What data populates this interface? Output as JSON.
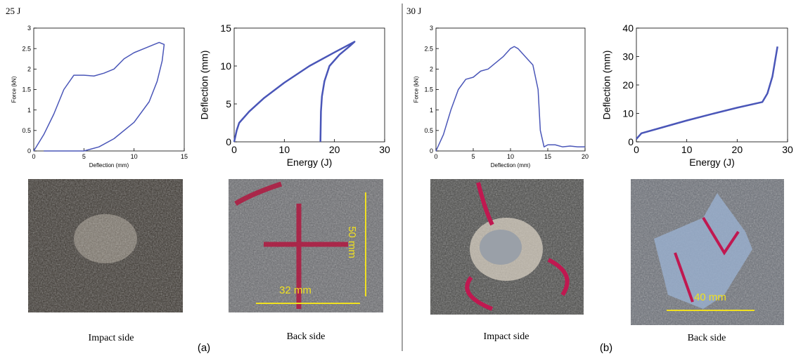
{
  "chart_data": [
    {
      "type": "line",
      "xlabel": "Deflection (mm)",
      "ylabel": "Force (kN)",
      "xlim": [
        0,
        15
      ],
      "ylim": [
        0,
        3
      ],
      "xticks": [
        0,
        5,
        10,
        15
      ],
      "yticks": [
        0,
        0.5,
        1,
        1.5,
        2,
        2.5,
        3
      ],
      "series": [
        {
          "color": "#4a56b8",
          "x": [
            0,
            1,
            2,
            3,
            4,
            5,
            6,
            7,
            8,
            9,
            10,
            11,
            12,
            12.5,
            13,
            12.8,
            12.3,
            11.5,
            10,
            8,
            6.5,
            5,
            3,
            1
          ],
          "values": [
            0,
            0.4,
            0.9,
            1.5,
            1.85,
            1.85,
            1.83,
            1.9,
            2.0,
            2.25,
            2.4,
            2.5,
            2.6,
            2.65,
            2.6,
            2.2,
            1.7,
            1.2,
            0.7,
            0.3,
            0.1,
            0,
            0,
            0
          ]
        }
      ]
    },
    {
      "type": "line",
      "xlabel": "Energy (J)",
      "ylabel": "Deflection (mm)",
      "xlim": [
        0,
        30
      ],
      "ylim": [
        0,
        15
      ],
      "xticks": [
        0,
        10,
        20,
        30
      ],
      "yticks": [
        0,
        5,
        10,
        15
      ],
      "series": [
        {
          "color": "#4a56b8",
          "x": [
            0,
            0.5,
            1,
            3,
            6,
            10,
            15,
            20,
            24,
            23,
            21,
            19,
            18,
            17.5,
            17.3,
            17.2
          ],
          "values": [
            0,
            1.5,
            2.5,
            4,
            5.8,
            7.8,
            10,
            11.8,
            13.2,
            12.6,
            11.5,
            10,
            8,
            6,
            4,
            0
          ]
        }
      ]
    },
    {
      "type": "line",
      "xlabel": "Deflection (mm)",
      "ylabel": "Force (kN)",
      "xlim": [
        0,
        20
      ],
      "ylim": [
        0,
        3
      ],
      "xticks": [
        0,
        5,
        10,
        15,
        20
      ],
      "yticks": [
        0,
        0.5,
        1,
        1.5,
        2,
        2.5,
        3
      ],
      "series": [
        {
          "color": "#4a56b8",
          "x": [
            0,
            1,
            2,
            3,
            4,
            5,
            6,
            7,
            8,
            9,
            10,
            10.5,
            11,
            12,
            13,
            13.7,
            14,
            14.5,
            15,
            16,
            17,
            18,
            19,
            20
          ],
          "values": [
            0,
            0.4,
            1,
            1.5,
            1.75,
            1.8,
            1.95,
            2.0,
            2.15,
            2.3,
            2.5,
            2.55,
            2.5,
            2.3,
            2.1,
            1.5,
            0.5,
            0.1,
            0.15,
            0.15,
            0.1,
            0.12,
            0.1,
            0.1
          ]
        }
      ]
    },
    {
      "type": "line",
      "xlabel": "Energy (J)",
      "ylabel": "Deflection (mm)",
      "xlim": [
        0,
        30
      ],
      "ylim": [
        0,
        40
      ],
      "xticks": [
        0,
        10,
        20,
        30
      ],
      "yticks": [
        0,
        10,
        20,
        30,
        40
      ],
      "series": [
        {
          "color": "#4a56b8",
          "x": [
            0,
            1,
            5,
            10,
            15,
            20,
            25,
            26,
            27,
            28
          ],
          "values": [
            1,
            3,
            5,
            7.5,
            9.8,
            12,
            14,
            17,
            23,
            33.5
          ]
        }
      ]
    }
  ],
  "panels": [
    {
      "energy": "25 J",
      "label": "(a)",
      "photos": [
        {
          "caption": "Impact side"
        },
        {
          "caption": "Back side",
          "annotations": [
            "32 mm",
            "50 mm"
          ]
        }
      ]
    },
    {
      "energy": "30 J",
      "label": "(b)",
      "photos": [
        {
          "caption": "Impact side"
        },
        {
          "caption": "Back side",
          "annotations": [
            "40 mm"
          ]
        }
      ]
    }
  ]
}
